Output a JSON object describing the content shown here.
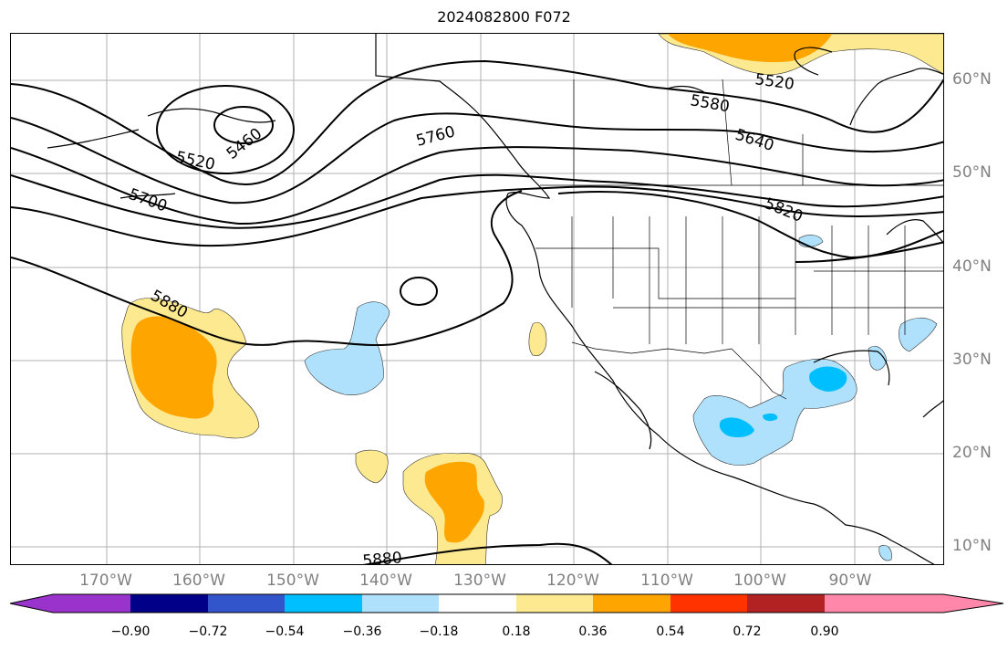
{
  "title": "2024082800 F072",
  "lon_labels": [
    "170°W",
    "160°W",
    "150°W",
    "140°W",
    "130°W",
    "120°W",
    "110°W",
    "100°W",
    "90°W"
  ],
  "lat_labels": [
    "60°N",
    "50°N",
    "40°N",
    "30°N",
    "20°N",
    "10°N"
  ],
  "contour_labels": [
    "5460",
    "5520",
    "5520",
    "5580",
    "5640",
    "5700",
    "5760",
    "5820",
    "5880",
    "5880"
  ],
  "colorbar": {
    "ticks": [
      "−0.90",
      "−0.72",
      "−0.54",
      "−0.36",
      "−0.18",
      "0.18",
      "0.36",
      "0.54",
      "0.72",
      "0.90"
    ],
    "colors": [
      "#9933cc",
      "#000088",
      "#3355cc",
      "#00bfff",
      "#afe0fc",
      "#ffffff",
      "#fde98f",
      "#ffa500",
      "#ff3300",
      "#b22222",
      "#ff88aa"
    ]
  }
}
